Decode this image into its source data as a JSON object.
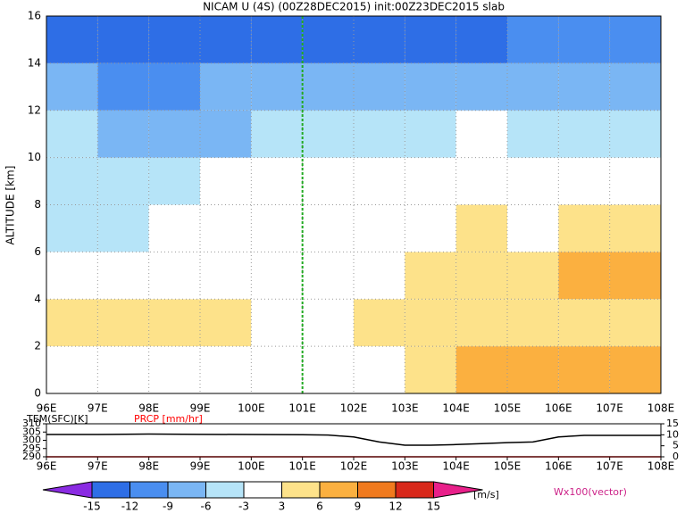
{
  "chart_data": [
    {
      "type": "heatmap",
      "title": "NICAM U (4S) (00Z28DEC2015) init:00Z23DEC2015 slab",
      "ylabel": "ALTITUDE [km]",
      "x": [
        96.5,
        97.5,
        98.5,
        99.5,
        100.5,
        101.5,
        102.5,
        103.5,
        104.5,
        105.5,
        106.5,
        107.5
      ],
      "y": [
        1,
        3,
        5,
        7,
        9,
        11,
        13,
        15
      ],
      "values": [
        [
          0,
          0,
          0,
          0,
          0,
          0,
          2,
          5,
          6,
          7,
          8,
          8
        ],
        [
          4,
          4,
          4,
          3,
          1,
          1,
          4,
          5,
          4,
          4,
          3,
          3
        ],
        [
          -3,
          -3,
          -3,
          -2,
          -1,
          0,
          1,
          4,
          4,
          3,
          6,
          7
        ],
        [
          -4,
          -4,
          -3,
          -2,
          -1,
          0,
          0,
          2,
          4,
          2,
          4,
          4
        ],
        [
          -5,
          -5,
          -4,
          -3,
          -3,
          -2,
          -1,
          -1,
          0,
          1,
          1,
          0
        ],
        [
          -6,
          -8,
          -9,
          -7,
          -6,
          -6,
          -5,
          -4,
          -3,
          -5,
          -4,
          -5
        ],
        [
          -9,
          -10,
          -10,
          -9,
          -8,
          -8,
          -8,
          -8,
          -8,
          -9,
          -9,
          -9
        ],
        [
          -14,
          -14,
          -13,
          -13,
          -13,
          -14,
          -14,
          -15,
          -13,
          -12,
          -12,
          -12
        ]
      ],
      "xlim": [
        96,
        108
      ],
      "ylim": [
        0,
        16
      ],
      "xticks": [
        {
          "value": 96,
          "label": "96E"
        },
        {
          "value": 97,
          "label": "97E"
        },
        {
          "value": 98,
          "label": "98E"
        },
        {
          "value": 99,
          "label": "99E"
        },
        {
          "value": 100,
          "label": "100E"
        },
        {
          "value": 101,
          "label": "101E"
        },
        {
          "value": 102,
          "label": "102E"
        },
        {
          "value": 103,
          "label": "103E"
        },
        {
          "value": 104,
          "label": "104E"
        },
        {
          "value": 105,
          "label": "105E"
        },
        {
          "value": 106,
          "label": "106E"
        },
        {
          "value": 107,
          "label": "107E"
        },
        {
          "value": 108,
          "label": "108E"
        }
      ],
      "yticks": [
        0,
        2,
        4,
        6,
        8,
        10,
        12,
        14,
        16
      ],
      "grid": true,
      "vline": 101,
      "vline_color": "#22aa22",
      "colorbar": {
        "levels": [
          -15,
          -12,
          -9,
          -6,
          -3,
          3,
          6,
          9,
          12,
          15
        ],
        "colors": [
          "#8a2be2",
          "#2e6ee6",
          "#4a8ef0",
          "#7ab6f4",
          "#b6e4f8",
          "#ffffff",
          "#fde28a",
          "#fbb040",
          "#f07a1e",
          "#d8281a",
          "#e8208a"
        ],
        "label": "[m/s]"
      },
      "vector_label": "Wx100(vector)"
    },
    {
      "type": "line",
      "ylabel": "TEM(SFC)[K]",
      "y2label": "PRCP [mm/hr]",
      "x": [
        96,
        97,
        98,
        99,
        100,
        101,
        101.5,
        102,
        102.5,
        103,
        103.5,
        104,
        104.5,
        105,
        105.5,
        106,
        106.5,
        107,
        108
      ],
      "series": [
        {
          "name": "TEM(SFC)[K]",
          "color": "#000000",
          "values": [
            303.5,
            303.5,
            303.8,
            303.6,
            303.5,
            303.4,
            303.2,
            302,
            299,
            297,
            297,
            297.4,
            298,
            298.6,
            299,
            302,
            303,
            303,
            303
          ]
        },
        {
          "name": "PRCP [mm/hr]",
          "color": "#ff0000",
          "axis": "y2",
          "values": [
            0,
            0,
            0,
            0,
            0,
            0,
            0,
            0,
            0,
            0,
            0,
            0,
            0,
            0,
            0,
            0,
            0,
            0,
            0
          ]
        }
      ],
      "xlim": [
        96,
        108
      ],
      "ylim": [
        290,
        310
      ],
      "y2lim": [
        0,
        15
      ],
      "xticks": [
        {
          "value": 96,
          "label": "96E"
        },
        {
          "value": 97,
          "label": "97E"
        },
        {
          "value": 98,
          "label": "98E"
        },
        {
          "value": 99,
          "label": "99E"
        },
        {
          "value": 100,
          "label": "100E"
        },
        {
          "value": 101,
          "label": "101E"
        },
        {
          "value": 102,
          "label": "102E"
        },
        {
          "value": 103,
          "label": "103E"
        },
        {
          "value": 104,
          "label": "104E"
        },
        {
          "value": 105,
          "label": "105E"
        },
        {
          "value": 106,
          "label": "106E"
        },
        {
          "value": 107,
          "label": "107E"
        },
        {
          "value": 108,
          "label": "108E"
        }
      ],
      "yticks": [
        290,
        295,
        300,
        305,
        310
      ],
      "y2ticks": [
        0,
        5,
        10,
        15
      ]
    }
  ]
}
